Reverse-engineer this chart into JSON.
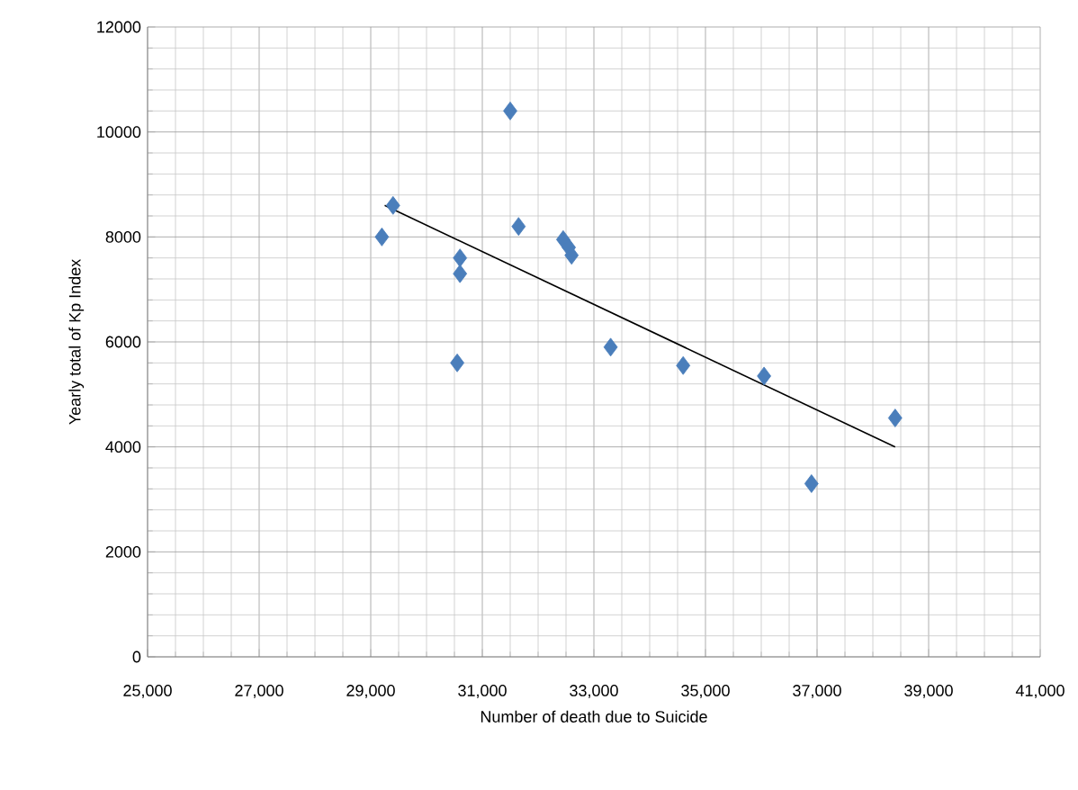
{
  "chart_data": {
    "type": "scatter",
    "xlabel": "Number of death due to Suicide",
    "ylabel": "Yearly total of Kp Index",
    "xlim": [
      25000,
      41000
    ],
    "xticks": [
      {
        "value": 25000,
        "label": "25,000"
      },
      {
        "value": 27000,
        "label": "27,000"
      },
      {
        "value": 29000,
        "label": "29,000"
      },
      {
        "value": 31000,
        "label": "31,000"
      },
      {
        "value": 33000,
        "label": "33,000"
      },
      {
        "value": 35000,
        "label": "35,000"
      },
      {
        "value": 37000,
        "label": "37,000"
      },
      {
        "value": 39000,
        "label": "39,000"
      },
      {
        "value": 41000,
        "label": "41,000"
      }
    ],
    "ylim": [
      0,
      12000
    ],
    "yticks": [
      0,
      2000,
      4000,
      6000,
      8000,
      10000,
      12000
    ],
    "grid": true,
    "marker": "diamond",
    "series": [
      {
        "color": "#4a7ebb",
        "x": [
          29200,
          29400,
          30600,
          30600,
          30550,
          31500,
          31650,
          32450,
          32550,
          32600,
          33300,
          34600,
          36050,
          36900,
          38400
        ],
        "values": [
          8000,
          8600,
          7600,
          7300,
          5600,
          10400,
          8200,
          7950,
          7800,
          7650,
          5900,
          5550,
          5350,
          3300,
          4550
        ]
      },
      {
        "type": "line",
        "color": "#000000",
        "marker": "none",
        "x": [
          29250,
          38400
        ],
        "values": [
          8600,
          4000
        ]
      }
    ]
  }
}
